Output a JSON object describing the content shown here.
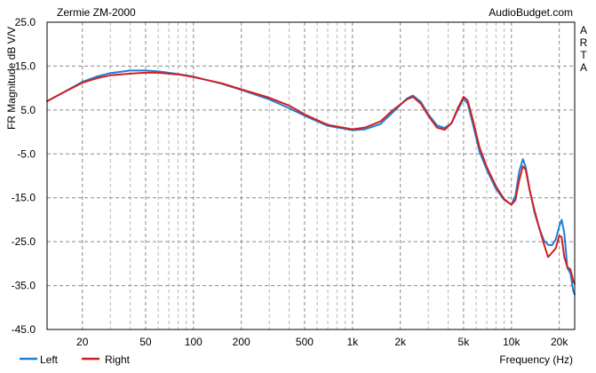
{
  "chart_data": {
    "type": "line",
    "title": "Zermie ZM-2000",
    "watermark": "AudioBudget.com",
    "side_label": [
      "A",
      "R",
      "T",
      "A"
    ],
    "xlabel": "Frequency (Hz)",
    "ylabel": "FR Magnitude dB V/V",
    "x_scale": "log",
    "xlim": [
      12,
      25000
    ],
    "ylim": [
      -45,
      25
    ],
    "grid": true,
    "legend_position": "bottom-left",
    "x_ticks": [
      {
        "value": 20,
        "label": "20"
      },
      {
        "value": 50,
        "label": "50"
      },
      {
        "value": 100,
        "label": "100"
      },
      {
        "value": 200,
        "label": "200"
      },
      {
        "value": 500,
        "label": "500"
      },
      {
        "value": 1000,
        "label": "1k"
      },
      {
        "value": 2000,
        "label": "2k"
      },
      {
        "value": 5000,
        "label": "5k"
      },
      {
        "value": 10000,
        "label": "10k"
      },
      {
        "value": 20000,
        "label": "20k"
      }
    ],
    "y_ticks": [
      {
        "value": 25,
        "label": "25.0"
      },
      {
        "value": 15,
        "label": "15.0"
      },
      {
        "value": 5,
        "label": "5.0"
      },
      {
        "value": -5,
        "label": "-5.0"
      },
      {
        "value": -15,
        "label": "-15.0"
      },
      {
        "value": -25,
        "label": "-25.0"
      },
      {
        "value": -35,
        "label": "-35.0"
      },
      {
        "value": -45,
        "label": "-45.0"
      }
    ],
    "series": [
      {
        "name": "Left",
        "color": "#1e7fd6",
        "points": [
          [
            12,
            7.0
          ],
          [
            15,
            8.9
          ],
          [
            20,
            11.4
          ],
          [
            25,
            12.7
          ],
          [
            30,
            13.4
          ],
          [
            40,
            14.0
          ],
          [
            50,
            14.0
          ],
          [
            60,
            13.8
          ],
          [
            80,
            13.2
          ],
          [
            100,
            12.6
          ],
          [
            150,
            11.0
          ],
          [
            200,
            9.6
          ],
          [
            300,
            7.4
          ],
          [
            400,
            5.4
          ],
          [
            500,
            3.7
          ],
          [
            700,
            1.4
          ],
          [
            1000,
            0.4
          ],
          [
            1200,
            0.6
          ],
          [
            1500,
            1.8
          ],
          [
            1800,
            4.5
          ],
          [
            2200,
            7.6
          ],
          [
            2400,
            8.3
          ],
          [
            2700,
            6.8
          ],
          [
            3000,
            4.0
          ],
          [
            3400,
            1.5
          ],
          [
            3800,
            0.9
          ],
          [
            4200,
            2.0
          ],
          [
            4600,
            5.0
          ],
          [
            5000,
            7.5
          ],
          [
            5300,
            6.5
          ],
          [
            5700,
            2.0
          ],
          [
            6300,
            -4.5
          ],
          [
            7000,
            -8.6
          ],
          [
            8000,
            -13.0
          ],
          [
            9000,
            -15.5
          ],
          [
            10000,
            -16.5
          ],
          [
            10600,
            -14.5
          ],
          [
            11200,
            -9.0
          ],
          [
            11800,
            -6.2
          ],
          [
            12300,
            -8.0
          ],
          [
            13000,
            -13.0
          ],
          [
            14000,
            -18.5
          ],
          [
            15000,
            -22.0
          ],
          [
            16000,
            -24.7
          ],
          [
            17000,
            -25.7
          ],
          [
            18000,
            -25.8
          ],
          [
            19000,
            -24.5
          ],
          [
            20000,
            -21.5
          ],
          [
            20700,
            -20.0
          ],
          [
            21500,
            -23.0
          ],
          [
            22500,
            -31.0
          ],
          [
            23500,
            -32.2
          ],
          [
            24500,
            -36.3
          ],
          [
            25000,
            -37.0
          ]
        ]
      },
      {
        "name": "Right",
        "color": "#d41f1f",
        "points": [
          [
            12,
            7.0
          ],
          [
            15,
            8.9
          ],
          [
            20,
            11.2
          ],
          [
            25,
            12.3
          ],
          [
            30,
            12.9
          ],
          [
            40,
            13.3
          ],
          [
            50,
            13.5
          ],
          [
            60,
            13.5
          ],
          [
            80,
            13.1
          ],
          [
            100,
            12.5
          ],
          [
            150,
            11.1
          ],
          [
            200,
            9.7
          ],
          [
            300,
            7.8
          ],
          [
            400,
            6.0
          ],
          [
            500,
            4.0
          ],
          [
            700,
            1.6
          ],
          [
            1000,
            0.6
          ],
          [
            1200,
            1.0
          ],
          [
            1500,
            2.4
          ],
          [
            1800,
            5.0
          ],
          [
            2200,
            7.4
          ],
          [
            2400,
            8.0
          ],
          [
            2700,
            6.4
          ],
          [
            3000,
            3.7
          ],
          [
            3400,
            1.0
          ],
          [
            3800,
            0.5
          ],
          [
            4200,
            2.0
          ],
          [
            4600,
            5.4
          ],
          [
            5000,
            8.0
          ],
          [
            5300,
            7.2
          ],
          [
            5700,
            3.0
          ],
          [
            6300,
            -3.5
          ],
          [
            7000,
            -8.0
          ],
          [
            8000,
            -12.4
          ],
          [
            9000,
            -15.3
          ],
          [
            10000,
            -16.6
          ],
          [
            10600,
            -15.5
          ],
          [
            11200,
            -11.0
          ],
          [
            11800,
            -7.8
          ],
          [
            12300,
            -8.6
          ],
          [
            13000,
            -13.2
          ],
          [
            14000,
            -18.0
          ],
          [
            15000,
            -22.0
          ],
          [
            16000,
            -25.5
          ],
          [
            17000,
            -28.5
          ],
          [
            18000,
            -27.5
          ],
          [
            19000,
            -26.5
          ],
          [
            20000,
            -23.6
          ],
          [
            20700,
            -24.0
          ],
          [
            21500,
            -28.5
          ],
          [
            22500,
            -30.8
          ],
          [
            23500,
            -31.3
          ],
          [
            24500,
            -34.0
          ],
          [
            25000,
            -34.6
          ]
        ]
      }
    ]
  }
}
